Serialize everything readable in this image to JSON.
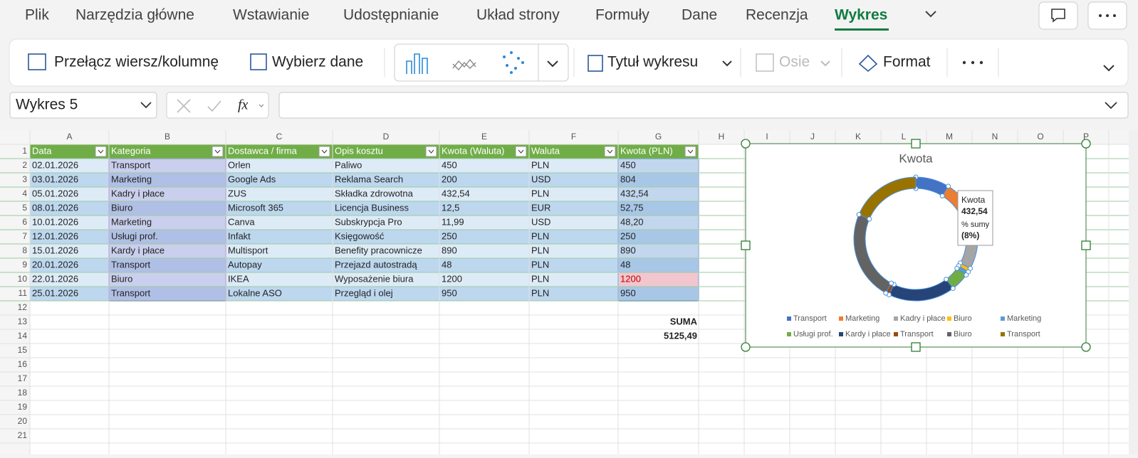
{
  "menu": {
    "tabs": [
      "Plik",
      "Narzędzia główne",
      "Wstawianie",
      "Udostępnianie",
      "Układ strony",
      "Formuły",
      "Dane",
      "Recenzja",
      "Wykres"
    ]
  },
  "ribbon": {
    "switch": "Przełącz wiersz/kolumnę",
    "select_data": "Wybierz dane",
    "chart_title": "Tytuł wykresu",
    "axes": "Osie",
    "format": "Format"
  },
  "name_box": "Wykres 5",
  "formula_bar": {
    "fx": "fx"
  },
  "sheet": {
    "column_letters": [
      "A",
      "B",
      "C",
      "D",
      "E",
      "F",
      "G",
      "H",
      "I",
      "J",
      "K",
      "L",
      "M",
      "N",
      "O",
      "P"
    ],
    "row_numbers": [
      1,
      2,
      3,
      4,
      5,
      6,
      7,
      8,
      9,
      10,
      11,
      12,
      13,
      14,
      15,
      16,
      17,
      18,
      19,
      20,
      21
    ],
    "header": [
      "Data",
      "Kategoria",
      "Dostawca / firma",
      "Opis kosztu",
      "Kwota (Waluta)",
      "Waluta",
      "Kwota (PLN)"
    ],
    "rows": [
      [
        "02.01.2026",
        "Transport",
        "Orlen",
        "Paliwo",
        "450",
        "PLN",
        "450"
      ],
      [
        "03.01.2026",
        "Marketing",
        "Google Ads",
        "Reklama Search",
        "200",
        "USD",
        "804"
      ],
      [
        "05.01.2026",
        "Kadry i płace",
        "ZUS",
        "Składka zdrowotna",
        "432,54",
        "PLN",
        "432,54"
      ],
      [
        "08.01.2026",
        "Biuro",
        "Microsoft 365",
        "Licencja Business",
        "12,5",
        "EUR",
        "52,75"
      ],
      [
        "10.01.2026",
        "Marketing",
        "Canva",
        "Subskrypcja Pro",
        "11,99",
        "USD",
        "48,20"
      ],
      [
        "12.01.2026",
        "Usługi prof.",
        "Infakt",
        "Księgowość",
        "250",
        "PLN",
        "250"
      ],
      [
        "15.01.2026",
        "Kardy i płace",
        "Multisport",
        "Benefity pracownicze",
        "890",
        "PLN",
        "890"
      ],
      [
        "20.01.2026",
        "Transport",
        "Autopay",
        "Przejazd autostradą",
        "48",
        "PLN",
        "48"
      ],
      [
        "22.01.2026",
        "Biuro",
        "IKEA",
        "Wyposażenie biura",
        "1200",
        "PLN",
        "1200"
      ],
      [
        "25.01.2026",
        "Transport",
        "Lokalne ASO",
        "Przegląd i olej",
        "950",
        "PLN",
        "950"
      ]
    ],
    "sum_label": "SUMA",
    "sum_value": "5125,49"
  },
  "chart_data": {
    "type": "donut",
    "title": "Kwota",
    "categories": [
      "Transport",
      "Marketing",
      "Kadry i płace",
      "Biuro",
      "Marketing",
      "Usługi prof.",
      "Kardy i płace",
      "Transport",
      "Biuro",
      "Transport"
    ],
    "values": [
      450,
      804,
      432.54,
      52.75,
      48.2,
      250,
      890,
      48,
      1200,
      950
    ],
    "colors": [
      "#4472c4",
      "#ed7d31",
      "#a5a5a5",
      "#ffc000",
      "#5b9bd5",
      "#70ad47",
      "#264478",
      "#9e480e",
      "#636363",
      "#997300"
    ],
    "tooltip": {
      "series": "Kwota",
      "value": "432,54",
      "label": "% sumy",
      "percent": "(8%)"
    }
  }
}
